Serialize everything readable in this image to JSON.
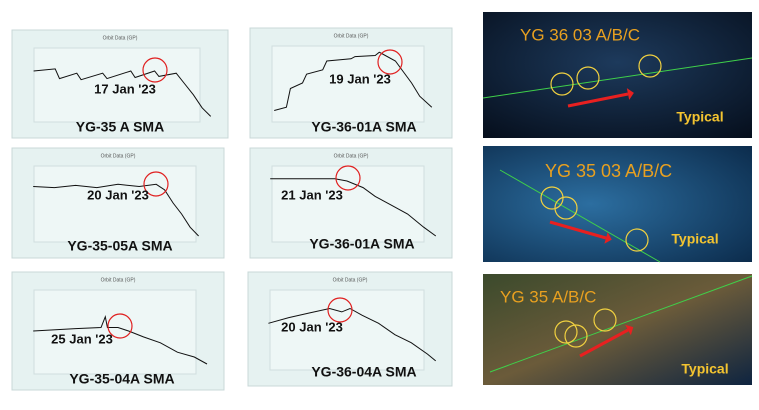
{
  "chart_panels": [
    {
      "header": "Orbit Data (GP)",
      "date": "17 Jan '23",
      "caption": "YG-35 A SMA"
    },
    {
      "header": "Orbit Data (GP)",
      "date": "19 Jan '23",
      "caption": "YG-36-01A SMA"
    },
    {
      "header": "Orbit Data (GP)",
      "date": "20 Jan '23",
      "caption": "YG-35-05A SMA"
    },
    {
      "header": "Orbit Data (GP)",
      "date": "21 Jan '23",
      "caption": "YG-36-01A SMA"
    },
    {
      "header": "Orbit Data (GP)",
      "date": "25 Jan '23",
      "caption": "YG-35-04A SMA"
    },
    {
      "header": "Orbit Data (GP)",
      "date": "20 Jan '23",
      "caption": "YG-36-04A SMA"
    }
  ],
  "map_panels": [
    {
      "label": "YG 36 03 A/B/C",
      "tag": "Typical"
    },
    {
      "label": "YG 35 03 A/B/C",
      "tag": "Typical"
    },
    {
      "label": "YG 35 A/B/C",
      "tag": "Typical"
    }
  ]
}
